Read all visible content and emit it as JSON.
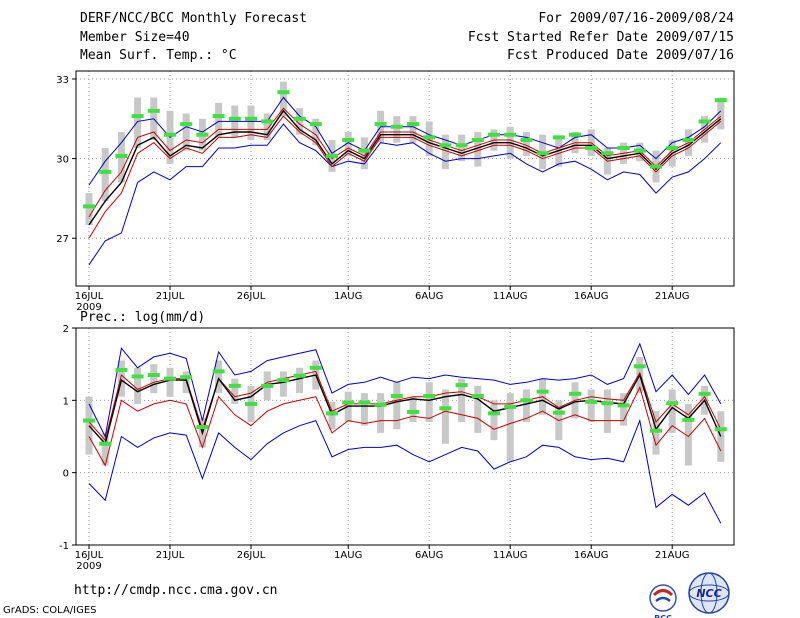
{
  "header": {
    "title": "DERF/NCC/BCC Monthly Forecast",
    "member": "Member Size=40",
    "variable": "Mean Surf. Temp.: °C",
    "period": "For 2009/07/16-2009/08/24",
    "started": "Fcst Started Refer Date 2009/07/15",
    "produced": "Fcst Produced Date 2009/07/16"
  },
  "footer": {
    "url": "http://cmdp.ncc.cma.gov.cn",
    "credit": "GrADS: COLA/IGES",
    "logo_left": "BCC",
    "logo_right": "NCC"
  },
  "colors": {
    "ensemble_box": "#c8c8c8",
    "mean_green": "#40e040",
    "outer": "#0000cc",
    "inner": "#cc0000",
    "median": "#000000"
  },
  "chart_data": [
    {
      "type": "line",
      "title": "Mean Surf. Temp.: °C",
      "x_tick_labels": [
        "16JUL",
        "21JUL",
        "26JUL",
        "1AUG",
        "6AUG",
        "11AUG",
        "16AUG",
        "21AUG"
      ],
      "x_tick_day_index": [
        0,
        5,
        10,
        16,
        21,
        26,
        31,
        36
      ],
      "x_sub_label": "2009",
      "ylim": [
        25.2,
        33.3
      ],
      "yticks": [
        27,
        30,
        33
      ],
      "ytick_labels": [
        "27",
        "30",
        "33"
      ],
      "series": [
        {
          "name": "max",
          "color": "blue",
          "values": [
            29.0,
            29.9,
            30.6,
            31.4,
            31.5,
            30.8,
            31.2,
            31.0,
            31.4,
            31.4,
            31.4,
            31.4,
            32.3,
            31.6,
            31.2,
            30.2,
            30.6,
            30.3,
            31.2,
            31.2,
            31.2,
            30.9,
            30.7,
            30.5,
            30.7,
            30.9,
            30.9,
            30.8,
            30.6,
            30.4,
            30.8,
            30.9,
            30.4,
            30.4,
            30.5,
            30.0,
            30.6,
            30.8,
            31.2,
            31.8
          ]
        },
        {
          "name": "p75",
          "color": "red",
          "values": [
            27.8,
            28.8,
            29.5,
            30.8,
            31.0,
            30.3,
            30.7,
            30.6,
            31.1,
            31.1,
            31.1,
            31.1,
            31.9,
            31.3,
            30.9,
            30.0,
            30.4,
            30.1,
            31.0,
            31.0,
            31.0,
            30.7,
            30.5,
            30.3,
            30.5,
            30.7,
            30.7,
            30.5,
            30.2,
            30.4,
            30.6,
            30.6,
            30.1,
            30.2,
            30.3,
            29.7,
            30.3,
            30.6,
            31.1,
            31.6
          ]
        },
        {
          "name": "median",
          "color": "black",
          "values": [
            27.5,
            28.4,
            29.1,
            30.5,
            30.8,
            30.1,
            30.5,
            30.4,
            30.9,
            31.0,
            31.0,
            30.9,
            31.8,
            31.1,
            30.7,
            29.8,
            30.3,
            30.0,
            30.9,
            30.9,
            30.9,
            30.6,
            30.4,
            30.2,
            30.4,
            30.6,
            30.6,
            30.4,
            30.1,
            30.3,
            30.5,
            30.5,
            30.0,
            30.1,
            30.2,
            29.6,
            30.2,
            30.5,
            31.0,
            31.5
          ]
        },
        {
          "name": "p25",
          "color": "red",
          "values": [
            27.0,
            28.0,
            28.7,
            30.2,
            30.6,
            30.0,
            30.4,
            30.2,
            30.8,
            30.8,
            30.9,
            30.8,
            31.6,
            31.0,
            30.6,
            29.7,
            30.2,
            29.9,
            30.8,
            30.8,
            30.8,
            30.5,
            30.3,
            30.1,
            30.3,
            30.5,
            30.5,
            30.3,
            30.0,
            30.2,
            30.4,
            30.4,
            29.9,
            30.0,
            30.1,
            29.5,
            30.1,
            30.4,
            30.9,
            31.4
          ]
        },
        {
          "name": "min",
          "color": "blue",
          "values": [
            26.0,
            26.9,
            27.2,
            29.1,
            29.5,
            29.2,
            29.7,
            29.7,
            30.4,
            30.4,
            30.5,
            30.5,
            31.3,
            30.6,
            30.3,
            29.7,
            29.9,
            29.8,
            30.6,
            30.5,
            30.6,
            30.2,
            29.9,
            30.0,
            30.0,
            30.1,
            30.2,
            29.8,
            29.5,
            29.8,
            29.9,
            29.6,
            29.2,
            29.5,
            29.4,
            28.7,
            29.3,
            29.5,
            30.0,
            30.6
          ]
        },
        {
          "name": "ensemble_mean",
          "color": "green",
          "values": [
            28.2,
            29.5,
            30.1,
            31.6,
            31.8,
            30.9,
            31.3,
            30.9,
            31.6,
            31.5,
            31.5,
            31.4,
            32.5,
            31.5,
            31.3,
            30.1,
            30.7,
            30.3,
            31.3,
            31.2,
            31.3,
            30.8,
            30.5,
            30.5,
            30.7,
            30.9,
            30.9,
            30.7,
            30.2,
            30.8,
            30.9,
            30.4,
            30.2,
            30.4,
            30.3,
            29.7,
            30.4,
            30.7,
            31.4,
            32.2
          ]
        },
        {
          "name": "box_high",
          "color": "gray",
          "values": [
            28.7,
            30.4,
            31.0,
            32.3,
            32.3,
            31.8,
            31.7,
            31.5,
            32.1,
            32.0,
            32.0,
            31.7,
            32.9,
            31.9,
            31.5,
            30.7,
            31.0,
            30.8,
            31.8,
            31.6,
            31.6,
            31.4,
            30.9,
            30.9,
            31.0,
            31.1,
            31.2,
            31.0,
            30.9,
            30.8,
            31.0,
            31.1,
            30.4,
            30.6,
            30.6,
            30.3,
            30.7,
            31.1,
            31.6,
            32.3
          ]
        },
        {
          "name": "box_low",
          "color": "gray",
          "values": [
            27.5,
            28.4,
            29.1,
            30.4,
            30.7,
            29.8,
            30.3,
            30.3,
            30.8,
            30.8,
            30.7,
            30.7,
            31.6,
            30.9,
            30.5,
            29.5,
            30.1,
            29.6,
            30.6,
            30.6,
            30.6,
            30.1,
            29.6,
            29.9,
            29.7,
            30.3,
            30.0,
            30.1,
            29.6,
            29.7,
            30.2,
            30.1,
            29.4,
            29.8,
            29.9,
            29.1,
            29.7,
            30.1,
            30.6,
            31.1
          ]
        }
      ]
    },
    {
      "type": "line",
      "title": "Prec.: log(mm/d)",
      "x_tick_labels": [
        "16JUL",
        "21JUL",
        "26JUL",
        "1AUG",
        "6AUG",
        "11AUG",
        "16AUG",
        "21AUG"
      ],
      "x_tick_day_index": [
        0,
        5,
        10,
        16,
        21,
        26,
        31,
        36
      ],
      "x_sub_label": "2009",
      "ylim": [
        -1,
        2
      ],
      "yticks": [
        -1,
        0,
        1,
        2
      ],
      "ytick_labels": [
        "-1",
        "0",
        "1",
        "2"
      ],
      "series": [
        {
          "name": "max",
          "color": "blue",
          "values": [
            0.95,
            0.5,
            1.72,
            1.45,
            1.6,
            1.65,
            1.58,
            0.72,
            1.67,
            1.35,
            1.4,
            1.55,
            1.6,
            1.65,
            1.7,
            1.1,
            1.22,
            1.25,
            1.32,
            1.25,
            1.32,
            1.3,
            1.35,
            1.32,
            1.3,
            1.28,
            1.22,
            1.25,
            1.3,
            1.28,
            1.3,
            1.35,
            1.22,
            1.3,
            1.78,
            1.12,
            1.35,
            1.08,
            1.35,
            0.95
          ]
        },
        {
          "name": "p75",
          "color": "red",
          "values": [
            0.7,
            0.45,
            1.35,
            1.15,
            1.25,
            1.3,
            1.3,
            0.6,
            1.3,
            1.05,
            1.1,
            1.25,
            1.3,
            1.35,
            1.4,
            0.85,
            0.95,
            0.95,
            0.95,
            1.0,
            1.05,
            1.05,
            1.1,
            1.12,
            1.05,
            0.95,
            0.95,
            1.0,
            1.05,
            0.9,
            1.0,
            1.05,
            1.02,
            1.0,
            1.38,
            0.7,
            0.95,
            0.8,
            1.05,
            0.6
          ]
        },
        {
          "name": "median",
          "color": "black",
          "values": [
            0.65,
            0.4,
            1.28,
            1.12,
            1.22,
            1.28,
            1.28,
            0.55,
            1.3,
            1.0,
            1.05,
            1.22,
            1.25,
            1.3,
            1.35,
            0.8,
            0.92,
            0.92,
            0.92,
            0.98,
            1.02,
            1.0,
            1.05,
            1.08,
            1.02,
            0.85,
            0.9,
            0.95,
            1.0,
            0.88,
            0.98,
            1.0,
            0.97,
            0.95,
            1.35,
            0.6,
            0.9,
            0.75,
            1.0,
            0.5
          ]
        },
        {
          "name": "p25",
          "color": "red",
          "values": [
            0.5,
            0.1,
            1.0,
            0.85,
            0.95,
            1.0,
            0.95,
            0.35,
            1.05,
            0.8,
            0.65,
            0.85,
            0.95,
            1.0,
            1.05,
            0.55,
            0.72,
            0.68,
            0.72,
            0.72,
            0.78,
            0.75,
            0.85,
            0.8,
            0.75,
            0.6,
            0.68,
            0.75,
            0.85,
            0.72,
            0.8,
            0.72,
            0.72,
            0.72,
            1.18,
            0.38,
            0.65,
            0.5,
            0.75,
            0.3
          ]
        },
        {
          "name": "min",
          "color": "blue",
          "values": [
            -0.15,
            -0.38,
            0.5,
            0.35,
            0.48,
            0.55,
            0.52,
            -0.08,
            0.55,
            0.35,
            0.18,
            0.4,
            0.55,
            0.65,
            0.72,
            0.22,
            0.32,
            0.35,
            0.35,
            0.38,
            0.25,
            0.15,
            0.25,
            0.35,
            0.3,
            0.05,
            0.15,
            0.22,
            0.38,
            0.35,
            0.22,
            0.18,
            0.2,
            0.15,
            0.72,
            -0.48,
            -0.3,
            -0.45,
            -0.28,
            -0.7
          ]
        },
        {
          "name": "ensemble_mean",
          "color": "green",
          "values": [
            0.72,
            0.4,
            1.42,
            1.33,
            1.35,
            1.3,
            1.32,
            0.63,
            1.4,
            1.2,
            0.95,
            1.2,
            1.28,
            1.34,
            1.45,
            0.82,
            0.97,
            0.97,
            0.94,
            1.06,
            0.84,
            1.06,
            0.89,
            1.21,
            1.06,
            0.82,
            0.91,
            1.0,
            1.12,
            0.83,
            1.09,
            0.98,
            0.96,
            0.93,
            1.47,
            0.58,
            0.96,
            0.73,
            1.09,
            0.6
          ]
        },
        {
          "name": "box_high",
          "color": "gray",
          "values": [
            1.05,
            0.55,
            1.55,
            1.45,
            1.5,
            1.45,
            1.4,
            0.75,
            1.55,
            1.3,
            1.2,
            1.4,
            1.4,
            1.45,
            1.55,
            0.98,
            1.12,
            1.1,
            1.1,
            1.25,
            1.05,
            1.25,
            1.15,
            1.3,
            1.2,
            1.0,
            1.1,
            1.15,
            1.3,
            1.0,
            1.25,
            1.15,
            1.15,
            1.1,
            1.6,
            0.85,
            1.15,
            0.95,
            1.2,
            0.85
          ]
        },
        {
          "name": "box_low",
          "color": "gray",
          "values": [
            0.25,
            0.1,
            1.05,
            0.95,
            1.1,
            1.05,
            1.1,
            0.35,
            1.1,
            0.95,
            0.7,
            1.0,
            1.05,
            1.1,
            1.15,
            0.6,
            0.7,
            0.65,
            0.55,
            0.6,
            0.7,
            0.7,
            0.4,
            0.7,
            0.55,
            0.45,
            0.15,
            0.7,
            0.8,
            0.45,
            0.75,
            0.7,
            0.55,
            0.65,
            1.1,
            0.25,
            0.55,
            0.1,
            0.8,
            0.15
          ]
        }
      ]
    }
  ]
}
